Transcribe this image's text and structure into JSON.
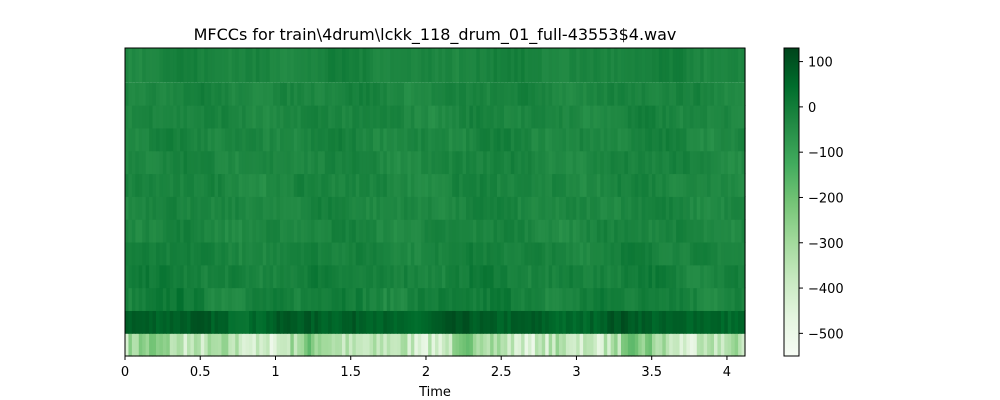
{
  "chart_data": {
    "type": "heatmap",
    "title": "MFCCs for train\\4drum\\lckk_118_drum_01_full-43553$4.wav",
    "xlabel": "Time",
    "ylabel": "",
    "xlim": [
      0,
      4.12
    ],
    "x_ticks": [
      "0",
      "0.5",
      "1",
      "1.5",
      "2",
      "2.5",
      "3",
      "3.5",
      "4"
    ],
    "x_tick_values": [
      0,
      0.5,
      1,
      1.5,
      2,
      2.5,
      3,
      3.5,
      4
    ],
    "y_ticks_shown": false,
    "n_coefficients": 13,
    "colormap": "Greens",
    "colormap_stops": [
      "#f7fcf5",
      "#e5f5e0",
      "#c7e9c0",
      "#a1d99b",
      "#74c476",
      "#41ab5d",
      "#238b45",
      "#006d2c",
      "#00441b"
    ],
    "colorbar": {
      "range": [
        -550,
        130
      ],
      "ticks": [
        "100",
        "0",
        "−100",
        "−200",
        "−300",
        "−400",
        "−500"
      ],
      "tick_values": [
        100,
        0,
        -100,
        -200,
        -300,
        -400,
        -500
      ]
    },
    "coefficient_rows": [
      {
        "coefficient": 1,
        "approx_range": [
          -550,
          -150
        ]
      },
      {
        "coefficient": 2,
        "approx_range": [
          20,
          120
        ]
      },
      {
        "coefficient": 3,
        "approx_range": [
          -60,
          40
        ]
      },
      {
        "coefficient": 4,
        "approx_range": [
          -50,
          30
        ]
      },
      {
        "coefficient": 5,
        "approx_range": [
          -50,
          20
        ]
      },
      {
        "coefficient": 6,
        "approx_range": [
          -60,
          10
        ]
      },
      {
        "coefficient": 7,
        "approx_range": [
          -60,
          10
        ]
      },
      {
        "coefficient": 8,
        "approx_range": [
          -60,
          10
        ]
      },
      {
        "coefficient": 9,
        "approx_range": [
          -60,
          10
        ]
      },
      {
        "coefficient": 10,
        "approx_range": [
          -60,
          10
        ]
      },
      {
        "coefficient": 11,
        "approx_range": [
          -60,
          10
        ]
      },
      {
        "coefficient": 12,
        "approx_range": [
          -55,
          10
        ]
      },
      {
        "coefficient": 13,
        "approx_range": [
          -50,
          10
        ]
      }
    ]
  }
}
